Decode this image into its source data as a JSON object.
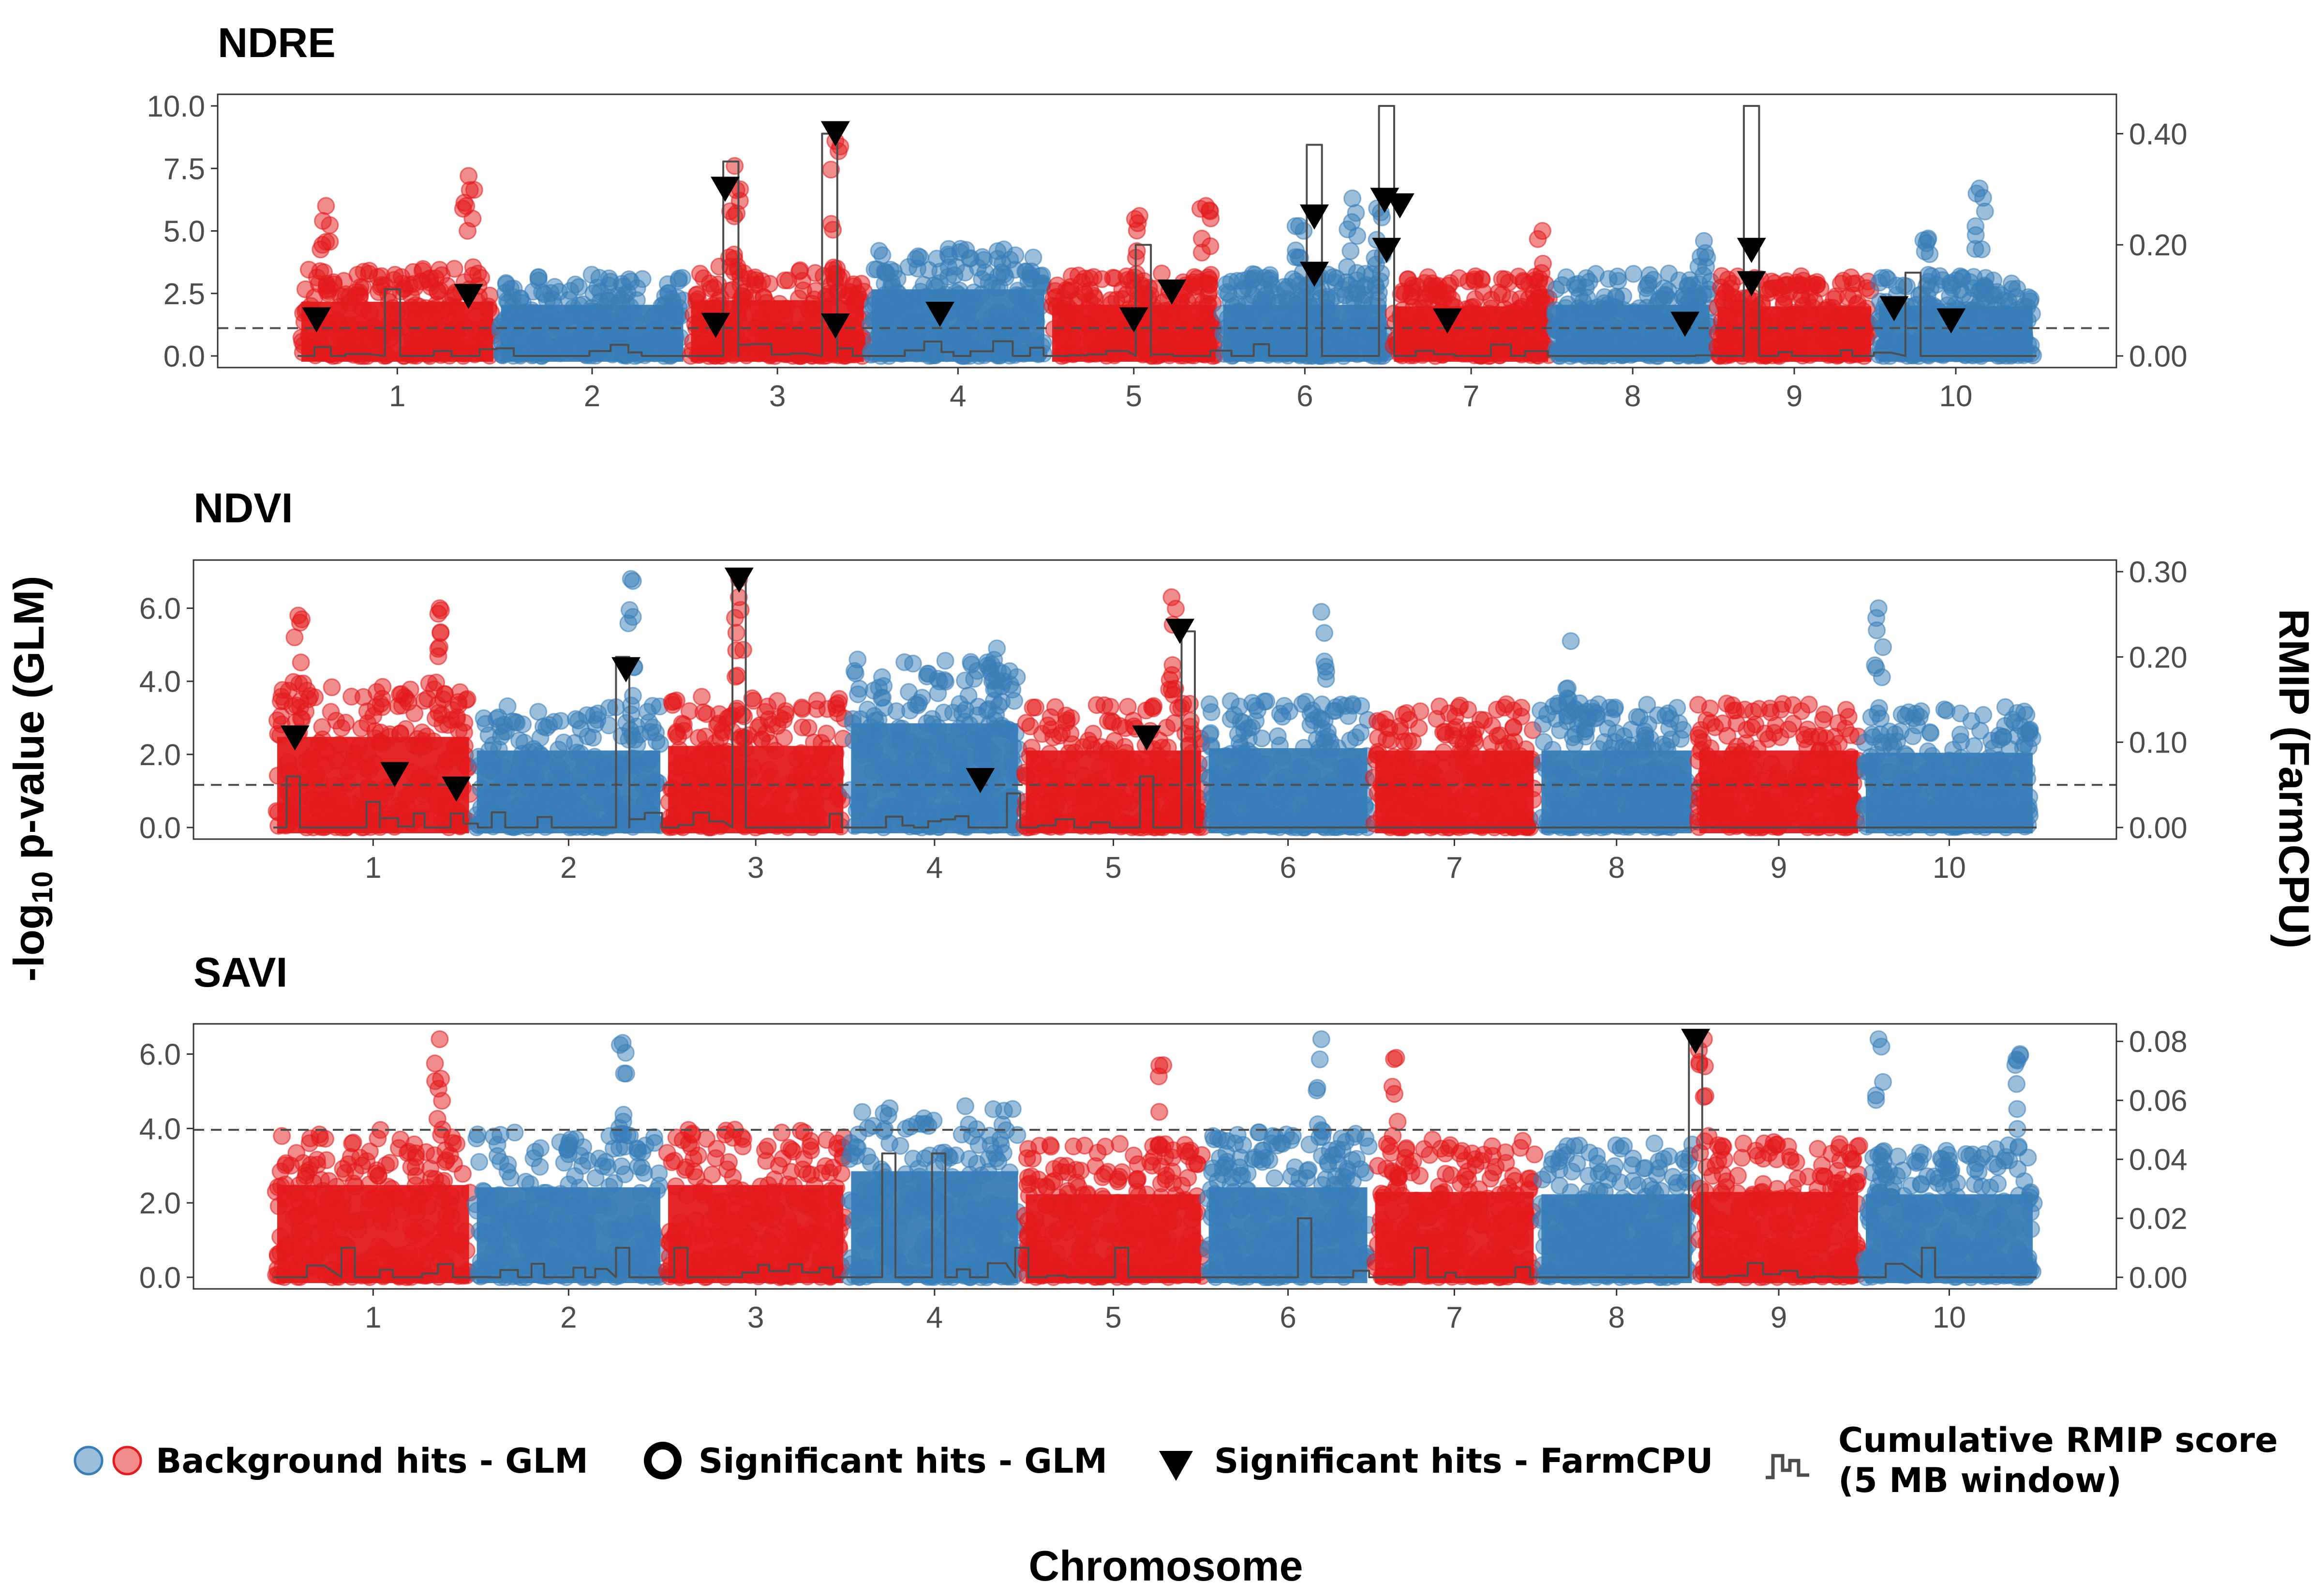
{
  "chart_data": {
    "type": "scatter",
    "subtype": "manhattan",
    "xlabel": "Chromosome",
    "ylabel_left": "-log10 p-value (GLM)",
    "ylabel_left_parts": {
      "pre": "-log",
      "sub": "10",
      "post": " p-value (GLM)"
    },
    "ylabel_right": "RMIP (FarmCPU)",
    "chromosomes": [
      "1",
      "2",
      "3",
      "4",
      "5",
      "6",
      "7",
      "8",
      "9",
      "10"
    ],
    "colors": {
      "odd": "#E41A1C",
      "even": "#377EB8",
      "rmip_line": "#4d4d4d",
      "threshold": "#4d4d4d",
      "farmcpu": "#000000"
    },
    "grid": false,
    "legend_position": "bottom",
    "legend": {
      "background": "Background hits - GLM",
      "significant_glm": "Significant hits - GLM",
      "significant_farmcpu": "Significant hits - FarmCPU",
      "rmip_line1": "Cumulative RMIP score",
      "rmip_line2": "(5 MB window)"
    },
    "panels": [
      {
        "title": "NDRE",
        "ylim": [
          0,
          10
        ],
        "yticks": [
          "0.0",
          "2.5",
          "5.0",
          "7.5",
          "10.0"
        ],
        "yticks_values": [
          0,
          2.5,
          5,
          7.5,
          10
        ],
        "ylim_right": [
          0,
          0.45
        ],
        "yticks_right": [
          "0.00",
          "0.20",
          "0.40"
        ],
        "yticks_right_values": [
          0,
          0.2,
          0.4
        ],
        "threshold_rmip": 0.05,
        "chrom_bounds": [
          0,
          1.05,
          2.05,
          3.0,
          3.95,
          4.85,
          5.75,
          6.6,
          7.45,
          8.3,
          9.15
        ],
        "background_max": [
          3.5,
          3.3,
          3.6,
          4.3,
          3.3,
          3.3,
          3.2,
          3.3,
          3.2,
          3.2
        ],
        "peaks": [
          [
            0.15,
            6.0
          ],
          [
            0.9,
            7.2
          ],
          [
            2.3,
            7.6
          ],
          [
            2.83,
            8.6
          ],
          [
            4.43,
            5.6
          ],
          [
            4.78,
            6.0
          ],
          [
            5.27,
            5.2
          ],
          [
            5.55,
            6.3
          ],
          [
            5.68,
            5.9
          ],
          [
            6.55,
            5.0
          ],
          [
            7.4,
            4.6
          ],
          [
            8.58,
            4.7
          ],
          [
            8.85,
            6.7
          ]
        ],
        "rmip_peaks": [
          [
            0.5,
            0.12
          ],
          [
            2.28,
            0.35
          ],
          [
            2.8,
            0.4
          ],
          [
            4.45,
            0.2
          ],
          [
            5.35,
            0.38
          ],
          [
            5.73,
            0.45
          ],
          [
            7.65,
            0.45
          ],
          [
            8.5,
            0.15
          ]
        ],
        "farmcpu_hits": [
          [
            0.1,
            0.065
          ],
          [
            0.9,
            0.107
          ],
          [
            2.2,
            0.055
          ],
          [
            2.25,
            0.3
          ],
          [
            2.83,
            0.054
          ],
          [
            2.83,
            0.4
          ],
          [
            3.38,
            0.075
          ],
          [
            4.4,
            0.065
          ],
          [
            4.6,
            0.115
          ],
          [
            5.35,
            0.25
          ],
          [
            5.35,
            0.147
          ],
          [
            6.05,
            0.063
          ],
          [
            5.72,
            0.28
          ],
          [
            5.73,
            0.19
          ],
          [
            5.8,
            0.27
          ],
          [
            7.3,
            0.057
          ],
          [
            7.65,
            0.19
          ],
          [
            7.65,
            0.13
          ],
          [
            8.4,
            0.085
          ],
          [
            8.7,
            0.063
          ]
        ]
      },
      {
        "title": "NDVI",
        "ylim": [
          0,
          7
        ],
        "yticks": [
          "0.0",
          "2.0",
          "4.0",
          "6.0"
        ],
        "yticks_values": [
          0,
          2,
          4,
          6
        ],
        "ylim_right": [
          0,
          0.3
        ],
        "yticks_right": [
          "0.00",
          "0.10",
          "0.20",
          "0.30"
        ],
        "yticks_right_values": [
          0,
          0.1,
          0.2,
          0.3
        ],
        "threshold_rmip": 0.05,
        "chrom_bounds": [
          0,
          1.2,
          2.35,
          3.45,
          4.5,
          5.6,
          6.6,
          7.6,
          8.55,
          9.55,
          10.6
        ],
        "background_max": [
          4.0,
          3.4,
          3.6,
          4.6,
          3.4,
          3.5,
          3.4,
          3.4,
          3.4,
          3.3
        ],
        "peaks": [
          [
            0.15,
            5.8
          ],
          [
            1.0,
            6.0
          ],
          [
            2.15,
            6.8
          ],
          [
            2.8,
            6.8
          ],
          [
            4.35,
            4.9
          ],
          [
            5.4,
            6.3
          ],
          [
            6.3,
            5.9
          ],
          [
            7.8,
            5.1
          ],
          [
            9.65,
            6.0
          ]
        ],
        "rmip_peaks": [
          [
            0.12,
            0.06
          ],
          [
            0.6,
            0.03
          ],
          [
            2.1,
            0.2
          ],
          [
            2.8,
            0.3
          ],
          [
            4.45,
            0.04
          ],
          [
            5.25,
            0.06
          ],
          [
            5.5,
            0.23
          ]
        ],
        "farmcpu_hits": [
          [
            0.13,
            0.105
          ],
          [
            0.73,
            0.062
          ],
          [
            1.1,
            0.045
          ],
          [
            2.12,
            0.185
          ],
          [
            2.8,
            0.29
          ],
          [
            4.25,
            0.055
          ],
          [
            5.25,
            0.105
          ],
          [
            5.45,
            0.23
          ]
        ]
      },
      {
        "title": "SAVI",
        "ylim": [
          0,
          6.5
        ],
        "yticks": [
          "0.0",
          "2.0",
          "4.0",
          "6.0"
        ],
        "yticks_values": [
          0,
          2,
          4,
          6
        ],
        "ylim_right": [
          0,
          0.082
        ],
        "yticks_right": [
          "0.00",
          "0.02",
          "0.04",
          "0.06",
          "0.08"
        ],
        "yticks_right_values": [
          0,
          0.02,
          0.04,
          0.06,
          0.08
        ],
        "threshold_rmip": 0.05,
        "chrom_bounds": [
          0,
          1.2,
          2.35,
          3.45,
          4.5,
          5.6,
          6.6,
          7.6,
          8.55,
          9.55,
          10.6
        ],
        "background_max": [
          4.0,
          3.9,
          4.0,
          4.6,
          3.6,
          3.9,
          3.7,
          3.6,
          3.7,
          3.6
        ],
        "peaks": [
          [
            1.0,
            6.4
          ],
          [
            2.1,
            6.3
          ],
          [
            5.35,
            5.7
          ],
          [
            6.3,
            6.4
          ],
          [
            6.75,
            5.9
          ],
          [
            8.6,
            6.4
          ],
          [
            9.65,
            6.4
          ],
          [
            10.5,
            6.0
          ]
        ],
        "rmip_peaks": [
          [
            0.45,
            0.01
          ],
          [
            2.1,
            0.01
          ],
          [
            2.45,
            0.01
          ],
          [
            3.7,
            0.042
          ],
          [
            4.0,
            0.042
          ],
          [
            4.5,
            0.01
          ],
          [
            5.1,
            0.01
          ],
          [
            6.2,
            0.02
          ],
          [
            6.9,
            0.01
          ],
          [
            8.55,
            0.082
          ],
          [
            9.95,
            0.01
          ]
        ],
        "farmcpu_hits": [
          [
            8.55,
            0.08
          ]
        ]
      }
    ]
  }
}
